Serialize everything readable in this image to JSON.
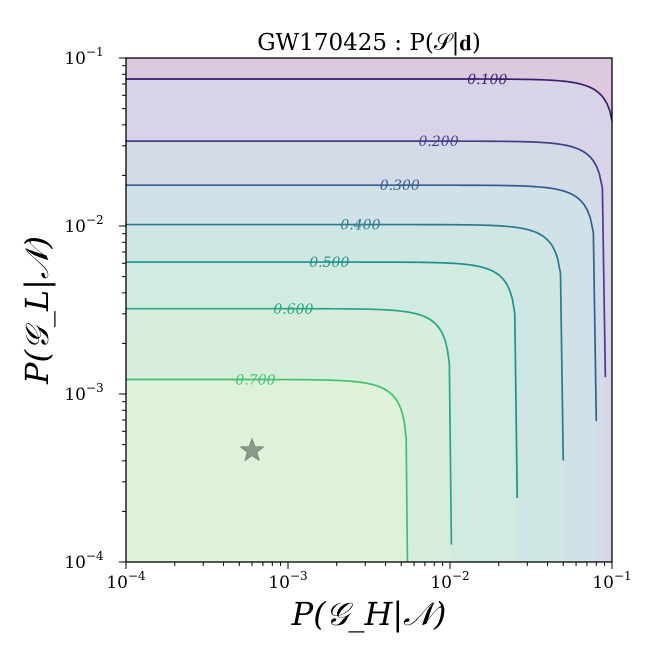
{
  "chart_data": {
    "type": "contour",
    "title": "GW170425 : P(𝒮|𝐝)",
    "xlabel": "P(𝒢_H|𝒩)",
    "ylabel": "P(𝒢_L|𝒩)",
    "xscale": "log",
    "yscale": "log",
    "xlim": [
      0.0001,
      0.1
    ],
    "ylim": [
      0.0001,
      0.1
    ],
    "xticks": [
      {
        "base": "10",
        "exp": "−4"
      },
      {
        "base": "10",
        "exp": "−3"
      },
      {
        "base": "10",
        "exp": "−2"
      },
      {
        "base": "10",
        "exp": "−1"
      }
    ],
    "yticks": [
      {
        "base": "10",
        "exp": "−4"
      },
      {
        "base": "10",
        "exp": "−3"
      },
      {
        "base": "10",
        "exp": "−2"
      },
      {
        "base": "10",
        "exp": "−1"
      }
    ],
    "grid": false,
    "contour_levels": [
      {
        "label": "0.100",
        "color": "#3b1f6e",
        "plateau_y": 0.075,
        "asymptote_x": 0.106
      },
      {
        "label": "0.200",
        "color": "#3f3f8c",
        "plateau_y": 0.032,
        "asymptote_x": 0.091
      },
      {
        "label": "0.300",
        "color": "#355d8e",
        "plateau_y": 0.0175,
        "asymptote_x": 0.08
      },
      {
        "label": "0.400",
        "color": "#2c7a8e",
        "plateau_y": 0.0102,
        "asymptote_x": 0.05
      },
      {
        "label": "0.500",
        "color": "#21908c",
        "plateau_y": 0.0061,
        "asymptote_x": 0.026
      },
      {
        "label": "0.600",
        "color": "#27a783",
        "plateau_y": 0.00322,
        "asymptote_x": 0.0102
      },
      {
        "label": "0.700",
        "color": "#44c06d",
        "plateau_y": 0.00122,
        "asymptote_x": 0.0055
      }
    ],
    "filled_bands": [
      "#dcc9df",
      "#d8d3e6",
      "#d3dbe8",
      "#d0e1e7",
      "#cfe6e4",
      "#d2ebe0",
      "#d7eedd",
      "#def2da"
    ],
    "marker": {
      "symbol": "star",
      "x": 0.0006,
      "y": 0.00046,
      "color": "#8c9a8c"
    }
  }
}
